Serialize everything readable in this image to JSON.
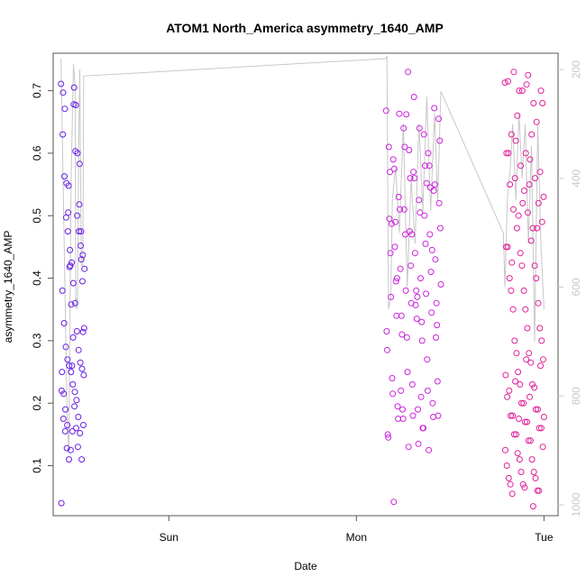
{
  "chart_data": {
    "type": "scatter",
    "title": "ATOM1 North_America asymmetry_1640_AMP",
    "xlabel": "Date",
    "ylabel": "asymmetry_1640_AMP",
    "x_ticks": [
      "Sun",
      "Mon",
      "Tue"
    ],
    "y_ticks": [
      "0.1",
      "0.2",
      "0.3",
      "0.4",
      "0.5",
      "0.6",
      "0.7"
    ],
    "y_lim": [
      0.02,
      0.76
    ],
    "y2_ticks": [
      "200",
      "400",
      "600",
      "800",
      "1000"
    ],
    "y2_lim": [
      1020,
      170
    ],
    "x_lim_hours": [
      -14.8,
      49.8
    ],
    "grid": false,
    "colors": {
      "group1": "#6a1fe6",
      "group2": "#cc22dd",
      "group3": "#e0209a",
      "index_line": "#c8c8c8",
      "axis": "#555555",
      "right_axis": "#c8c8c8"
    },
    "groups": [
      {
        "color_key": "group1",
        "x_start_hours": -13.8,
        "x_end_hours": -10.8,
        "y": [
          0.711,
          0.678,
          0.63,
          0.603,
          0.563,
          0.5,
          0.497,
          0.475,
          0.475,
          0.452,
          0.418,
          0.395,
          0.358,
          0.32,
          0.305,
          0.25,
          0.218,
          0.215,
          0.205,
          0.19,
          0.178,
          0.165,
          0.152,
          0.11,
          0.11,
          0.125,
          0.165,
          0.155,
          0.04,
          0.705,
          0.697,
          0.677,
          0.671,
          0.6,
          0.552,
          0.518,
          0.505,
          0.475,
          0.445,
          0.437,
          0.425,
          0.415,
          0.392,
          0.38,
          0.36,
          0.328,
          0.315,
          0.29,
          0.285,
          0.27,
          0.265,
          0.26,
          0.255,
          0.25,
          0.245,
          0.23,
          0.22,
          0.195,
          0.175,
          0.16,
          0.155,
          0.13,
          0.128,
          0.583,
          0.548,
          0.43,
          0.42,
          0.314,
          0.26
        ],
        "index": [
          178,
          195,
          235,
          260,
          305,
          330,
          350,
          380,
          400,
          420,
          445,
          470,
          500,
          530,
          560,
          590,
          620,
          650,
          680,
          710,
          740,
          770,
          800,
          830,
          860,
          890,
          920,
          900,
          870,
          840,
          810,
          780,
          750,
          720,
          690,
          660,
          630,
          600,
          570,
          540,
          510,
          480,
          450,
          420,
          390,
          360,
          330,
          300,
          270,
          240,
          215,
          210,
          232,
          270,
          310,
          350,
          390,
          430,
          470,
          510,
          550,
          590,
          630,
          670,
          700,
          740,
          780,
          820,
          210
        ]
      },
      {
        "color_key": "group2",
        "x_start_hours": 27.8,
        "x_end_hours": 34.8,
        "y": [
          0.668,
          0.662,
          0.552,
          0.487,
          0.47,
          0.445,
          0.4,
          0.37,
          0.235,
          0.19,
          0.16,
          0.15,
          0.73,
          0.6,
          0.59,
          0.57,
          0.54,
          0.53,
          0.525,
          0.52,
          0.51,
          0.5,
          0.495,
          0.475,
          0.47,
          0.45,
          0.44,
          0.43,
          0.415,
          0.4,
          0.39,
          0.38,
          0.375,
          0.37,
          0.36,
          0.345,
          0.34,
          0.335,
          0.325,
          0.31,
          0.3,
          0.285,
          0.25,
          0.22,
          0.215,
          0.18,
          0.178,
          0.175,
          0.135,
          0.655,
          0.64,
          0.63,
          0.61,
          0.605,
          0.58,
          0.575,
          0.56,
          0.55,
          0.51,
          0.505,
          0.48,
          0.47,
          0.455,
          0.44,
          0.42,
          0.41,
          0.395,
          0.38,
          0.36,
          0.34,
          0.33,
          0.315,
          0.305,
          0.27,
          0.24,
          0.23,
          0.2,
          0.195,
          0.19,
          0.18,
          0.175,
          0.16,
          0.145,
          0.13,
          0.125,
          0.042,
          0.69,
          0.672,
          0.663,
          0.64,
          0.62,
          0.61,
          0.58,
          0.57,
          0.56,
          0.545,
          0.49,
          0.357,
          0.305,
          0.22,
          0.21
        ],
        "index": [
          175,
          350,
          500,
          650,
          540,
          560,
          640,
          600,
          590,
          610,
          380,
          330,
          260,
          300,
          290,
          310,
          250,
          420,
          460,
          360,
          480,
          520,
          400,
          440,
          560,
          600,
          640,
          680,
          720,
          760,
          800,
          840,
          880,
          920,
          880,
          840,
          800,
          760,
          720,
          680,
          640,
          600,
          560,
          520,
          480,
          440,
          400,
          360,
          320,
          280,
          240,
          200,
          240,
          280,
          320,
          360,
          400,
          440,
          480,
          520,
          560,
          600,
          640,
          680,
          720,
          760,
          800,
          840,
          880,
          920,
          960,
          920,
          880,
          840,
          800,
          760,
          720,
          680,
          640,
          600,
          560,
          520,
          480,
          440,
          400,
          360,
          320,
          280,
          240,
          280,
          320,
          360,
          400,
          440,
          480,
          520,
          560,
          600,
          640,
          560,
          380
        ]
      },
      {
        "color_key": "group3",
        "x_start_hours": 43.0,
        "x_end_hours": 48.0,
        "y": [
          0.713,
          0.7,
          0.68,
          0.6,
          0.52,
          0.48,
          0.425,
          0.27,
          0.26,
          0.235,
          0.21,
          0.178,
          0.175,
          0.035,
          0.715,
          0.7,
          0.65,
          0.63,
          0.6,
          0.57,
          0.56,
          0.55,
          0.53,
          0.5,
          0.48,
          0.45,
          0.42,
          0.4,
          0.38,
          0.35,
          0.32,
          0.3,
          0.28,
          0.27,
          0.25,
          0.23,
          0.21,
          0.2,
          0.19,
          0.18,
          0.17,
          0.16,
          0.15,
          0.14,
          0.13,
          0.12,
          0.11,
          0.1,
          0.09,
          0.08,
          0.07,
          0.065,
          0.06,
          0.73,
          0.725,
          0.68,
          0.66,
          0.63,
          0.6,
          0.58,
          0.56,
          0.55,
          0.54,
          0.52,
          0.51,
          0.505,
          0.49,
          0.48,
          0.46,
          0.45,
          0.44,
          0.42,
          0.4,
          0.38,
          0.36,
          0.35,
          0.32,
          0.3,
          0.28,
          0.265,
          0.245,
          0.23,
          0.225,
          0.22,
          0.2,
          0.19,
          0.18,
          0.17,
          0.16,
          0.15,
          0.14,
          0.125,
          0.11,
          0.09,
          0.08,
          0.07,
          0.06,
          0.055,
          0.71,
          0.7,
          0.62,
          0.59
        ],
        "index": [
          500,
          520,
          480,
          460,
          440,
          600,
          620,
          580,
          560,
          540,
          420,
          400,
          380,
          360,
          340,
          320,
          300,
          280,
          260,
          240,
          220,
          200,
          240,
          280,
          320,
          360,
          400,
          440,
          480,
          520,
          560,
          600,
          640,
          680,
          720,
          760,
          800,
          840,
          880,
          920,
          960,
          920,
          880,
          840,
          800,
          760,
          720,
          680,
          640,
          600,
          560,
          520,
          480,
          440,
          400,
          360,
          320,
          280,
          240,
          200,
          240,
          280,
          320,
          360,
          400,
          440,
          480,
          520,
          560,
          600,
          640,
          680,
          720,
          760,
          800,
          840,
          880,
          920,
          960,
          920,
          880,
          840,
          800,
          760,
          720,
          680,
          640,
          600,
          560,
          520,
          480,
          440,
          400,
          360,
          320,
          280,
          240,
          200,
          240,
          280,
          260,
          250
        ]
      }
    ],
    "index_path": [
      {
        "h": -13.8,
        "i": 180
      },
      {
        "h": -13.3,
        "i": 600
      },
      {
        "h": -13.0,
        "i": 850
      },
      {
        "h": -12.8,
        "i": 900
      },
      {
        "h": -12.5,
        "i": 400
      },
      {
        "h": -12.2,
        "i": 190
      },
      {
        "h": -12.0,
        "i": 230
      },
      {
        "h": -11.9,
        "i": 640
      },
      {
        "h": -11.8,
        "i": 620
      },
      {
        "h": -11.7,
        "i": 640
      },
      {
        "h": -11.5,
        "i": 300
      },
      {
        "h": -11.4,
        "i": 200
      },
      {
        "h": -11.2,
        "i": 560
      },
      {
        "h": -11.0,
        "i": 560
      },
      {
        "h": -10.9,
        "i": 212
      },
      {
        "h": 27.8,
        "i": 180
      },
      {
        "h": 27.9,
        "i": 175
      },
      {
        "h": 28.1,
        "i": 640
      },
      {
        "h": 28.4,
        "i": 620
      },
      {
        "h": 28.6,
        "i": 440
      },
      {
        "h": 29.0,
        "i": 380
      },
      {
        "h": 29.5,
        "i": 500
      },
      {
        "h": 30.0,
        "i": 300
      },
      {
        "h": 30.5,
        "i": 600
      },
      {
        "h": 31.0,
        "i": 400
      },
      {
        "h": 31.5,
        "i": 520
      },
      {
        "h": 32.0,
        "i": 300
      },
      {
        "h": 32.5,
        "i": 460
      },
      {
        "h": 33.0,
        "i": 250
      },
      {
        "h": 33.5,
        "i": 460
      },
      {
        "h": 34.0,
        "i": 280
      },
      {
        "h": 34.4,
        "i": 440
      },
      {
        "h": 34.8,
        "i": 240
      },
      {
        "h": 42.8,
        "i": 500
      },
      {
        "h": 43.0,
        "i": 600
      },
      {
        "h": 43.3,
        "i": 440
      },
      {
        "h": 43.7,
        "i": 380
      },
      {
        "h": 44.0,
        "i": 300
      },
      {
        "h": 44.4,
        "i": 440
      },
      {
        "h": 44.8,
        "i": 280
      },
      {
        "h": 45.2,
        "i": 400
      },
      {
        "h": 45.6,
        "i": 300
      },
      {
        "h": 46.0,
        "i": 520
      },
      {
        "h": 46.4,
        "i": 340
      },
      {
        "h": 46.8,
        "i": 700
      },
      {
        "h": 47.2,
        "i": 300
      },
      {
        "h": 47.6,
        "i": 520
      },
      {
        "h": 48.0,
        "i": 640
      }
    ]
  }
}
